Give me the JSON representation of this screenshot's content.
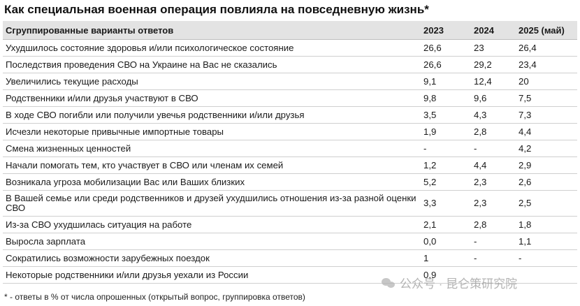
{
  "title": "Как специальная военная операция повлияла на повседневную жизнь*",
  "table": {
    "headers": [
      "Сгруппированные варианты ответов",
      "2023",
      "2024",
      "2025 (май)"
    ],
    "rows": [
      [
        "Ухудшилось состояние здоровья и/или психологическое состояние",
        "26,6",
        "23",
        "26,4"
      ],
      [
        "Последствия проведения СВО на Украине на Вас не сказались",
        "26,6",
        "29,2",
        "23,4"
      ],
      [
        "Увеличились текущие расходы",
        "9,1",
        "12,4",
        "20"
      ],
      [
        "Родственники и/или друзья участвуют в СВО",
        "9,8",
        "9,6",
        "7,5"
      ],
      [
        "В ходе СВО погибли или получили увечья родственники и/или друзья",
        "3,5",
        "4,3",
        "7,3"
      ],
      [
        "Исчезли некоторые привычные импортные товары",
        "1,9",
        "2,8",
        "4,4"
      ],
      [
        "Смена жизненных ценностей",
        "-",
        "-",
        "4,2"
      ],
      [
        "Начали помогать тем, кто участвует в СВО или членам их семей",
        "1,2",
        "4,4",
        "2,9"
      ],
      [
        "Возникала угроза мобилизации Вас или Ваших близких",
        "5,2",
        "2,3",
        "2,6"
      ],
      [
        "В Вашей семье или среди родственников и друзей ухудшились отношения из-за разной оценки СВО",
        "3,3",
        "2,3",
        "2,5"
      ],
      [
        "Из-за СВО ухудшилась ситуация на работе",
        "2,1",
        "2,8",
        "1,8"
      ],
      [
        "Выросла зарплата",
        "0,0",
        "-",
        "1,1"
      ],
      [
        "Сократились возможности зарубежных поездок",
        "1",
        "-",
        "-"
      ],
      [
        "Некоторые родственники и/или друзья уехали из России",
        "0,9",
        "",
        ""
      ]
    ]
  },
  "footnote": "* - ответы в % от числа опрошенных (открытый вопрос, группировка ответов)",
  "watermark": "公众号 · 昆仑策研究院"
}
